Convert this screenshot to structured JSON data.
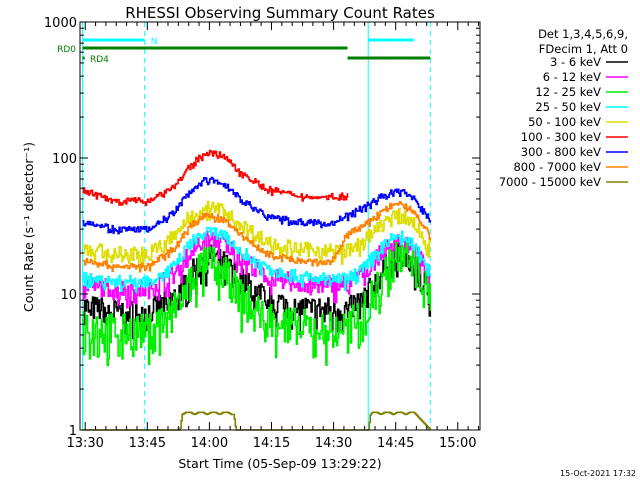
{
  "chart_data": {
    "type": "line",
    "title": "RHESSI Observing Summary Count Rates",
    "xlabel": "Start Time (05-Sep-09 13:29:22)",
    "ylabel": "Count Rate (s⁻¹ detector⁻¹)",
    "yscale": "log",
    "xlim": [
      -0.63,
      96.0
    ],
    "ylim": [
      1,
      1000
    ],
    "x_ticks": [
      {
        "x": 0.63,
        "label": "13:30"
      },
      {
        "x": 15.63,
        "label": "13:45"
      },
      {
        "x": 30.63,
        "label": "14:00"
      },
      {
        "x": 45.63,
        "label": "14:15"
      },
      {
        "x": 60.63,
        "label": "14:30"
      },
      {
        "x": 75.63,
        "label": "14:45"
      },
      {
        "x": 90.63,
        "label": "15:00"
      }
    ],
    "y_ticks": [
      {
        "y": 1,
        "label": "1"
      },
      {
        "y": 10,
        "label": "10"
      },
      {
        "y": 100,
        "label": "100"
      },
      {
        "y": 1000,
        "label": "1000"
      }
    ],
    "legend": {
      "position": "right",
      "header": [
        "Det 1,3,4,5,6,9,",
        "FDecim 1, Att 0"
      ],
      "entries": [
        {
          "label": "3 - 6 keV",
          "color": "#000000"
        },
        {
          "label": "6 - 12 keV",
          "color": "#ff00ff"
        },
        {
          "label": "12 - 25 keV",
          "color": "#00ee00"
        },
        {
          "label": "25 - 50 keV",
          "color": "#00ffff"
        },
        {
          "label": "50 - 100 keV",
          "color": "#dddd00"
        },
        {
          "label": "100 - 300 keV",
          "color": "#ff0000"
        },
        {
          "label": "300 - 800 keV",
          "color": "#0000ff"
        },
        {
          "label": "800 - 7000 keV",
          "color": "#ff8000"
        },
        {
          "label": "7000 - 15000 keV",
          "color": "#808000"
        }
      ]
    },
    "flags": [
      {
        "label": "N",
        "color": "#00ffff",
        "segments": [
          [
            0.0,
            15.0
          ],
          [
            69.0,
            80.0
          ]
        ],
        "level": "top"
      },
      {
        "label": "RD0",
        "color": "#008000",
        "segments": [
          [
            0.0,
            64.0
          ]
        ],
        "level": "upper"
      },
      {
        "label": "RD4",
        "color": "#008000",
        "segments": [
          [
            0.0,
            0.5
          ],
          [
            64.0,
            84.0
          ]
        ],
        "level": "lower"
      }
    ],
    "night_boundaries": [
      {
        "x": 0.0,
        "style": "solid"
      },
      {
        "x": 15.0,
        "style": "dashed"
      },
      {
        "x": 69.0,
        "style": "solid"
      },
      {
        "x": 84.0,
        "style": "dashed"
      }
    ],
    "segment": {
      "start": 0.0,
      "end": 84.0,
      "gap_at": 64.0
    },
    "series": [
      {
        "name": "3 - 6 keV",
        "color": "#000000",
        "noise": 0.22,
        "gap_jump": 1.0,
        "x": [
          0,
          8,
          16,
          22,
          26,
          29,
          31,
          34,
          38,
          44,
          52,
          60,
          64,
          68,
          72,
          74,
          76,
          78,
          80,
          82,
          84
        ],
        "y": [
          8.2,
          7.5,
          7.5,
          9.5,
          14,
          18,
          19,
          17,
          13,
          9.5,
          8,
          7.8,
          7.8,
          9.5,
          14,
          18,
          19.5,
          19,
          16,
          13,
          10
        ]
      },
      {
        "name": "6 - 12 keV",
        "color": "#ff00ff",
        "noise": 0.16,
        "gap_jump": 1.0,
        "x": [
          0,
          8,
          16,
          22,
          26,
          29,
          31,
          34,
          38,
          44,
          52,
          60,
          64,
          68,
          72,
          74,
          76,
          78,
          80,
          82,
          84
        ],
        "y": [
          12,
          11,
          11,
          14,
          21,
          25,
          26,
          24,
          19,
          14,
          12,
          12,
          12,
          15,
          20,
          23,
          25,
          24,
          21,
          17,
          13
        ]
      },
      {
        "name": "12 - 25 keV",
        "color": "#00ee00",
        "noise": 0.3,
        "gap_jump": 1.0,
        "x": [
          0,
          8,
          16,
          22,
          26,
          29,
          31,
          34,
          38,
          44,
          52,
          60,
          64,
          68,
          72,
          74,
          76,
          78,
          80,
          82,
          84
        ],
        "y": [
          6.2,
          5.5,
          5.5,
          8,
          13,
          17,
          18,
          15,
          10,
          7,
          6,
          5.8,
          5.8,
          8,
          13,
          19,
          21,
          20,
          17,
          13,
          9.5
        ]
      },
      {
        "name": "25 - 50 keV",
        "color": "#00ffff",
        "noise": 0.1,
        "gap_jump": 1.0,
        "x": [
          0,
          8,
          16,
          22,
          26,
          29,
          31,
          34,
          38,
          44,
          52,
          60,
          64,
          68,
          72,
          74,
          76,
          78,
          80,
          82,
          84
        ],
        "y": [
          13.5,
          12.5,
          12.5,
          16,
          24,
          28,
          29,
          27,
          21,
          16,
          13.5,
          13,
          13,
          16,
          22,
          25,
          27,
          26,
          23,
          19,
          14.5
        ]
      },
      {
        "name": "50 - 100 keV",
        "color": "#dddd00",
        "noise": 0.12,
        "gap_jump": 1.0,
        "x": [
          0,
          8,
          16,
          22,
          26,
          29,
          31,
          34,
          38,
          44,
          52,
          60,
          64,
          68,
          72,
          74,
          76,
          78,
          80,
          82,
          84
        ],
        "y": [
          22,
          20,
          20,
          27,
          38,
          43,
          44,
          41,
          33,
          25,
          21.5,
          21,
          21,
          25,
          32,
          36,
          38,
          37,
          33,
          27,
          22
        ]
      },
      {
        "name": "100 - 300 keV",
        "color": "#ff0000",
        "noise": 0.05,
        "gap_jump": 1.0,
        "x": [
          0,
          8,
          16,
          22,
          26,
          29,
          31,
          34,
          38,
          44,
          52,
          60,
          64
        ],
        "y": [
          58,
          49,
          49,
          62,
          88,
          107,
          111,
          103,
          80,
          60,
          53,
          52,
          53
        ]
      },
      {
        "name": "300 - 800 keV",
        "color": "#0000ff",
        "noise": 0.05,
        "gap_jump": 1.0,
        "x": [
          0,
          8,
          16,
          22,
          26,
          29,
          31,
          34,
          38,
          44,
          52,
          60,
          64,
          68,
          72,
          74,
          76,
          78,
          80,
          82,
          84
        ],
        "y": [
          35,
          30,
          30,
          40,
          57,
          68,
          70,
          65,
          51,
          38,
          34,
          33,
          38,
          44,
          52,
          55,
          58,
          56,
          50,
          42,
          35
        ]
      },
      {
        "name": "800 - 7000 keV",
        "color": "#ff8000",
        "noise": 0.05,
        "gap_jump": 1.0,
        "x": [
          0,
          8,
          16,
          22,
          26,
          29,
          31,
          34,
          38,
          44,
          52,
          60,
          64,
          68,
          72,
          74,
          76,
          78,
          80,
          82,
          84
        ],
        "y": [
          18,
          16,
          16,
          22,
          32,
          37,
          38,
          35,
          28,
          20,
          17.5,
          17,
          28,
          32,
          40,
          44,
          46,
          45,
          40,
          33,
          27
        ]
      },
      {
        "name": "7000 - 15000 keV",
        "color": "#808000",
        "noise": 0,
        "gap_jump": 1.0,
        "x": [
          0,
          23.5,
          24,
          25,
          26,
          27,
          28,
          29,
          30,
          31,
          32,
          33,
          34,
          35,
          36,
          36.5,
          37,
          69,
          69.5,
          70,
          71,
          72,
          73,
          74,
          75,
          76,
          77,
          78,
          79,
          80,
          80.5,
          84
        ],
        "y": [
          1,
          1,
          1.3,
          1.35,
          1.35,
          1.3,
          1.35,
          1.35,
          1.3,
          1.35,
          1.35,
          1.3,
          1.35,
          1.35,
          1.3,
          1.3,
          1,
          1,
          1.3,
          1.35,
          1.35,
          1.3,
          1.35,
          1.35,
          1.3,
          1.35,
          1.35,
          1.3,
          1.35,
          1.35,
          1.3,
          1
        ]
      }
    ],
    "timestamp": "15-Oct-2021 17:32"
  }
}
